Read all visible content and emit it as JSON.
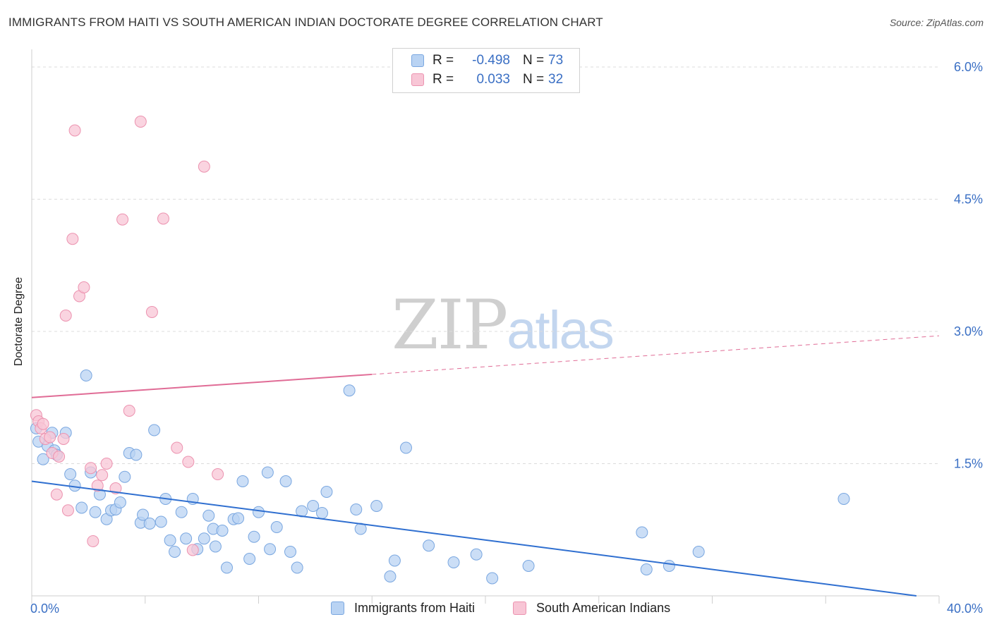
{
  "title": "IMMIGRANTS FROM HAITI VS SOUTH AMERICAN INDIAN DOCTORATE DEGREE CORRELATION CHART",
  "source": "Source: ZipAtlas.com",
  "watermark": {
    "zip": "ZIP",
    "atlas": "atlas"
  },
  "legend": {
    "r_label": "R =",
    "n_label": "N =",
    "series": [
      {
        "r": "-0.498",
        "n": "73"
      },
      {
        "r": "0.033",
        "n": "32"
      }
    ]
  },
  "colors": {
    "blue_fill": "#b9d3f3",
    "blue_stroke": "#7aa7e0",
    "blue_line": "#2f6fd0",
    "pink_fill": "#f8c6d6",
    "pink_stroke": "#ec93b0",
    "pink_line": "#e06c96",
    "grid": "#dcdcdc",
    "tick_label": "#3a6fc4"
  },
  "chart_data": {
    "type": "scatter",
    "title": "IMMIGRANTS FROM HAITI VS SOUTH AMERICAN INDIAN DOCTORATE DEGREE CORRELATION CHART",
    "xlabel": "",
    "ylabel": "Doctorate Degree",
    "xlim": [
      0,
      40
    ],
    "ylim": [
      0,
      6.2
    ],
    "x_tick_labels": [
      "0.0%",
      "40.0%"
    ],
    "y_ticks": [
      1.5,
      3.0,
      4.5,
      6.0
    ],
    "y_tick_labels": [
      "1.5%",
      "3.0%",
      "4.5%",
      "6.0%"
    ],
    "grid": true,
    "series": [
      {
        "name": "Immigrants from Haiti",
        "color": "#b9d3f3",
        "r": -0.498,
        "n": 73,
        "trend": {
          "x0": 0,
          "y0": 1.3,
          "x1": 39,
          "y1": 0.0,
          "style": "solid"
        },
        "points": [
          [
            0.2,
            1.9
          ],
          [
            0.3,
            1.75
          ],
          [
            0.5,
            1.55
          ],
          [
            0.7,
            1.7
          ],
          [
            0.9,
            1.85
          ],
          [
            1.0,
            1.65
          ],
          [
            1.1,
            1.6
          ],
          [
            1.5,
            1.85
          ],
          [
            1.7,
            1.38
          ],
          [
            1.9,
            1.25
          ],
          [
            2.2,
            1.0
          ],
          [
            2.4,
            2.5
          ],
          [
            2.6,
            1.4
          ],
          [
            2.8,
            0.95
          ],
          [
            3.0,
            1.15
          ],
          [
            3.3,
            0.87
          ],
          [
            3.5,
            0.97
          ],
          [
            3.7,
            0.98
          ],
          [
            3.9,
            1.06
          ],
          [
            4.1,
            1.35
          ],
          [
            4.3,
            1.62
          ],
          [
            4.6,
            1.6
          ],
          [
            4.8,
            0.83
          ],
          [
            4.9,
            0.92
          ],
          [
            5.2,
            0.82
          ],
          [
            5.4,
            1.88
          ],
          [
            5.7,
            0.84
          ],
          [
            5.9,
            1.1
          ],
          [
            6.1,
            0.63
          ],
          [
            6.3,
            0.5
          ],
          [
            6.6,
            0.95
          ],
          [
            6.8,
            0.65
          ],
          [
            7.1,
            1.1
          ],
          [
            7.3,
            0.53
          ],
          [
            7.6,
            0.65
          ],
          [
            7.8,
            0.91
          ],
          [
            8.0,
            0.76
          ],
          [
            8.1,
            0.56
          ],
          [
            8.4,
            0.74
          ],
          [
            8.6,
            0.32
          ],
          [
            8.9,
            0.87
          ],
          [
            9.1,
            0.88
          ],
          [
            9.3,
            1.3
          ],
          [
            9.6,
            0.42
          ],
          [
            9.8,
            0.67
          ],
          [
            10.0,
            0.95
          ],
          [
            10.4,
            1.4
          ],
          [
            10.5,
            0.53
          ],
          [
            10.8,
            0.78
          ],
          [
            11.2,
            1.3
          ],
          [
            11.4,
            0.5
          ],
          [
            11.7,
            0.32
          ],
          [
            11.9,
            0.96
          ],
          [
            12.4,
            1.02
          ],
          [
            12.8,
            0.94
          ],
          [
            13.0,
            1.18
          ],
          [
            14.0,
            2.33
          ],
          [
            14.3,
            0.98
          ],
          [
            14.5,
            0.76
          ],
          [
            15.2,
            1.02
          ],
          [
            15.8,
            0.22
          ],
          [
            16.0,
            0.4
          ],
          [
            16.5,
            1.68
          ],
          [
            17.5,
            0.57
          ],
          [
            18.6,
            0.38
          ],
          [
            19.6,
            0.47
          ],
          [
            20.3,
            0.2
          ],
          [
            21.9,
            0.34
          ],
          [
            26.9,
            0.72
          ],
          [
            27.1,
            0.3
          ],
          [
            28.1,
            0.34
          ],
          [
            29.4,
            0.5
          ],
          [
            35.8,
            1.1
          ]
        ]
      },
      {
        "name": "South American Indians",
        "color": "#f8c6d6",
        "r": 0.033,
        "n": 32,
        "trend": {
          "x0": 0,
          "y0": 2.25,
          "x1": 40,
          "y1": 2.95,
          "solid_until_x": 15,
          "style": "solid-then-dashed"
        },
        "points": [
          [
            0.2,
            2.05
          ],
          [
            0.3,
            1.98
          ],
          [
            0.4,
            1.9
          ],
          [
            0.5,
            1.95
          ],
          [
            0.6,
            1.78
          ],
          [
            0.8,
            1.8
          ],
          [
            0.9,
            1.62
          ],
          [
            1.1,
            1.15
          ],
          [
            1.2,
            1.58
          ],
          [
            1.4,
            1.78
          ],
          [
            1.5,
            3.18
          ],
          [
            1.6,
            0.97
          ],
          [
            1.8,
            4.05
          ],
          [
            1.9,
            5.28
          ],
          [
            2.1,
            3.4
          ],
          [
            2.3,
            3.5
          ],
          [
            2.6,
            1.45
          ],
          [
            2.7,
            0.62
          ],
          [
            2.9,
            1.25
          ],
          [
            3.1,
            1.37
          ],
          [
            3.3,
            1.5
          ],
          [
            3.7,
            1.22
          ],
          [
            4.0,
            4.27
          ],
          [
            4.3,
            2.1
          ],
          [
            4.8,
            5.38
          ],
          [
            5.3,
            3.22
          ],
          [
            5.8,
            4.28
          ],
          [
            6.4,
            1.68
          ],
          [
            6.9,
            1.52
          ],
          [
            7.1,
            0.52
          ],
          [
            7.6,
            4.87
          ],
          [
            8.2,
            1.38
          ]
        ]
      }
    ]
  }
}
